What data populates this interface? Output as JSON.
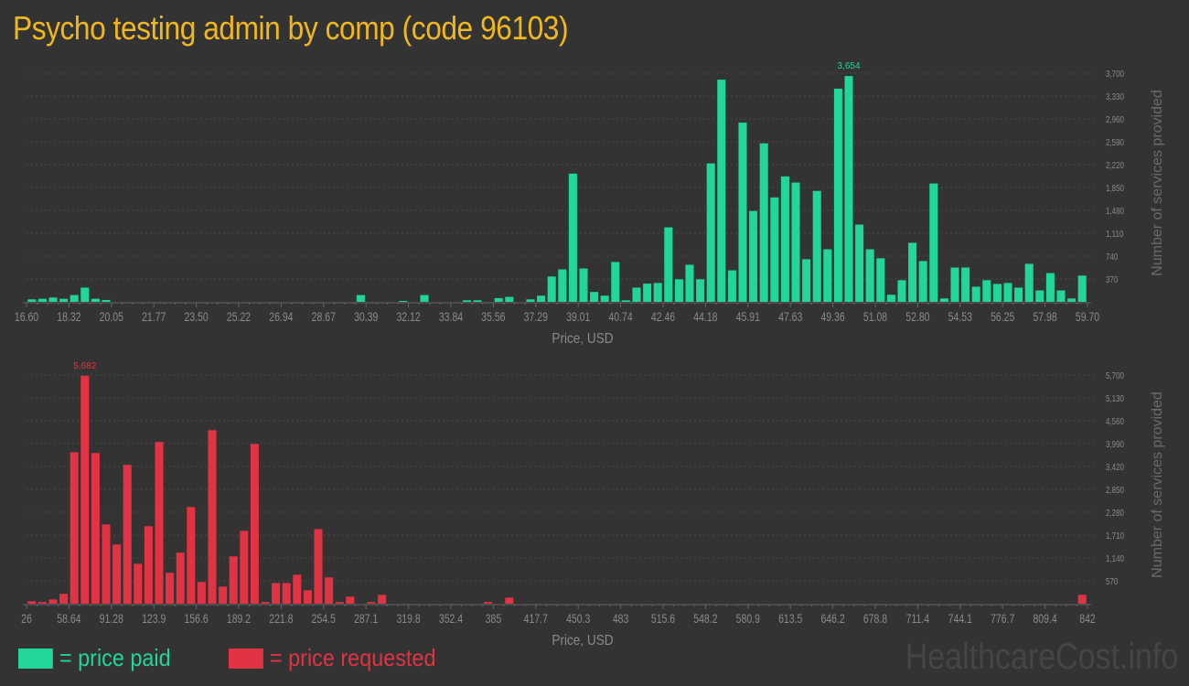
{
  "title": "Psycho testing admin by comp (code 96103)",
  "colors": {
    "paid": "#22d69a",
    "requested": "#e03444",
    "title": "#f0b81c"
  },
  "legend": {
    "paid_label": "= price paid",
    "requested_label": "= price requested"
  },
  "watermark": "HealthcareCost.info",
  "chart_data": [
    {
      "type": "bar",
      "name": "price paid",
      "xlabel": "Price, USD",
      "ylabel": "Number of services provided",
      "x_range": [
        16.6,
        59.7
      ],
      "ylim": [
        0,
        3700
      ],
      "yticks": [
        "370",
        "740",
        "1,110",
        "1,480",
        "1,850",
        "2,220",
        "2,590",
        "2,960",
        "3,330",
        "3,700"
      ],
      "xticks": [
        "16.60",
        "18.32",
        "20.05",
        "21.77",
        "23.50",
        "25.22",
        "26.94",
        "28.67",
        "30.39",
        "32.12",
        "33.84",
        "35.56",
        "37.29",
        "39.01",
        "40.74",
        "42.46",
        "44.18",
        "45.91",
        "47.63",
        "49.36",
        "51.08",
        "52.80",
        "54.53",
        "56.25",
        "57.98",
        "59.70"
      ],
      "max_label": "3,654",
      "max_index": 77,
      "grid": true,
      "values": [
        40,
        50,
        70,
        50,
        110,
        230,
        50,
        30,
        0,
        0,
        0,
        0,
        0,
        0,
        0,
        0,
        0,
        0,
        0,
        0,
        0,
        0,
        0,
        0,
        0,
        0,
        0,
        0,
        0,
        0,
        0,
        110,
        0,
        0,
        0,
        15,
        0,
        110,
        0,
        0,
        0,
        25,
        25,
        0,
        60,
        80,
        0,
        40,
        100,
        410,
        525,
        2075,
        540,
        160,
        100,
        645,
        25,
        230,
        295,
        305,
        1205,
        365,
        600,
        365,
        2240,
        3595,
        510,
        2900,
        1470,
        2565,
        1690,
        2030,
        1930,
        690,
        1795,
        850,
        3450,
        3654,
        1250,
        850,
        705,
        115,
        350,
        955,
        660,
        1915,
        55,
        555,
        555,
        245,
        350,
        290,
        305,
        230,
        615,
        185,
        465,
        185,
        55,
        425
      ]
    },
    {
      "type": "bar",
      "name": "price requested",
      "xlabel": "Price, USD",
      "ylabel": "Number of services provided",
      "x_range": [
        26,
        842
      ],
      "ylim": [
        0,
        5700
      ],
      "yticks": [
        "570",
        "1,140",
        "1,710",
        "2,280",
        "2,850",
        "3,420",
        "3,990",
        "4,560",
        "5,130",
        "5,700"
      ],
      "xticks": [
        "26",
        "58.64",
        "91.28",
        "123.9",
        "156.6",
        "189.2",
        "221.8",
        "254.5",
        "287.1",
        "319.8",
        "352.4",
        "385",
        "417.7",
        "450.3",
        "483",
        "515.6",
        "548.2",
        "580.9",
        "613.5",
        "646.2",
        "678.8",
        "711.4",
        "744.1",
        "776.7",
        "809.4",
        "842"
      ],
      "max_label": "5,682",
      "max_index": 5,
      "grid": true,
      "values": [
        60,
        40,
        105,
        245,
        3775,
        5682,
        3755,
        1975,
        1475,
        3460,
        995,
        1930,
        4030,
        770,
        1270,
        2410,
        540,
        4325,
        425,
        1180,
        1815,
        3980,
        40,
        515,
        515,
        720,
        335,
        1860,
        655,
        40,
        175,
        0,
        40,
        220,
        0,
        0,
        0,
        0,
        0,
        0,
        0,
        0,
        0,
        40,
        0,
        150,
        0,
        0,
        0,
        0,
        0,
        0,
        0,
        0,
        0,
        0,
        0,
        0,
        0,
        0,
        0,
        0,
        0,
        0,
        0,
        0,
        0,
        0,
        0,
        0,
        0,
        0,
        0,
        0,
        0,
        0,
        0,
        0,
        0,
        0,
        0,
        0,
        0,
        0,
        0,
        0,
        0,
        0,
        0,
        0,
        0,
        0,
        0,
        0,
        0,
        0,
        0,
        0,
        0,
        220
      ]
    }
  ]
}
